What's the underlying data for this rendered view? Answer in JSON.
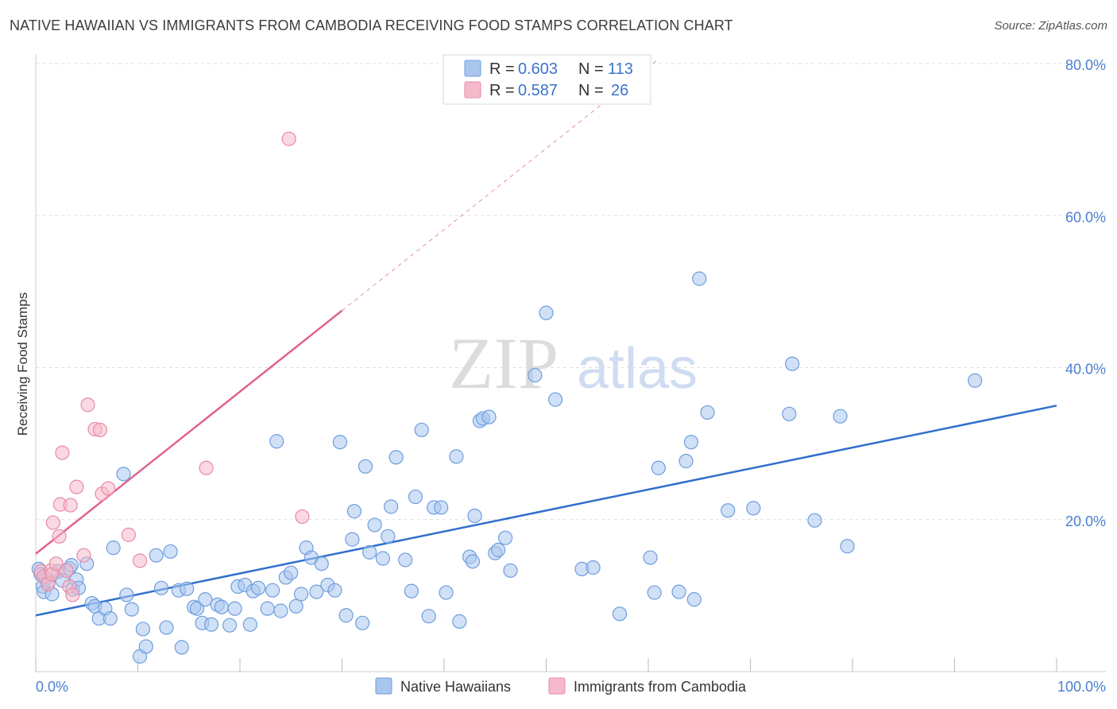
{
  "title": "NATIVE HAWAIIAN VS IMMIGRANTS FROM CAMBODIA RECEIVING FOOD STAMPS CORRELATION CHART",
  "source": "Source: ZipAtlas.com",
  "watermark": {
    "zip": "ZIP",
    "atlas": "atlas"
  },
  "colors": {
    "blue_fill": "#a9c6ee",
    "blue_stroke": "#6f9ede",
    "blue_line": "#2f6fcc",
    "pink_fill": "#f5b9cb",
    "pink_stroke": "#e88aa6",
    "pink_line": "#e0628a",
    "tick_text": "#4a7fd0",
    "grid": "#dddddd"
  },
  "legend": {
    "r_label": "R =",
    "n_label": "N =",
    "rows": [
      {
        "r": "0.603",
        "n": "113",
        "color": "blue"
      },
      {
        "r": "0.587",
        "n": "26",
        "color": "pink"
      }
    ]
  },
  "chart_data": {
    "type": "scatter",
    "title": "NATIVE HAWAIIAN VS IMMIGRANTS FROM CAMBODIA RECEIVING FOOD STAMPS CORRELATION CHART",
    "xlabel": "",
    "ylabel": "Receiving Food Stamps",
    "xlim": [
      0,
      100
    ],
    "ylim": [
      0,
      80
    ],
    "x_tick_labels": [
      "0.0%",
      "100.0%"
    ],
    "y_ticks": [
      20,
      40,
      60,
      80
    ],
    "y_tick_labels": [
      "20.0%",
      "40.0%",
      "60.0%",
      "80.0%"
    ],
    "grid": true,
    "legend_position": "bottom",
    "series": [
      {
        "name": "Native Hawaiians",
        "color": "blue",
        "trend": {
          "x0": 0,
          "y0": 7.4,
          "x1": 100,
          "y1": 35.0
        },
        "points": [
          [
            0.3,
            13.5
          ],
          [
            0.5,
            12.8
          ],
          [
            0.7,
            11.2
          ],
          [
            0.8,
            10.5
          ],
          [
            1.0,
            12.2
          ],
          [
            1.2,
            11.8
          ],
          [
            1.6,
            10.2
          ],
          [
            2.2,
            13.2
          ],
          [
            2.6,
            12.0
          ],
          [
            3.3,
            13.6
          ],
          [
            3.5,
            14.0
          ],
          [
            3.6,
            10.8
          ],
          [
            4.0,
            12.1
          ],
          [
            4.2,
            11.0
          ],
          [
            5.0,
            14.2
          ],
          [
            5.5,
            9.0
          ],
          [
            5.8,
            8.6
          ],
          [
            6.2,
            7.0
          ],
          [
            6.8,
            8.3
          ],
          [
            7.3,
            7.0
          ],
          [
            7.6,
            16.3
          ],
          [
            8.6,
            26.0
          ],
          [
            8.9,
            10.1
          ],
          [
            9.4,
            8.2
          ],
          [
            10.2,
            2.0
          ],
          [
            10.5,
            5.6
          ],
          [
            10.8,
            3.3
          ],
          [
            11.8,
            15.3
          ],
          [
            12.3,
            11.0
          ],
          [
            12.8,
            5.8
          ],
          [
            13.2,
            15.8
          ],
          [
            14.0,
            10.7
          ],
          [
            14.3,
            3.2
          ],
          [
            14.8,
            10.9
          ],
          [
            15.5,
            8.5
          ],
          [
            15.8,
            8.3
          ],
          [
            16.3,
            6.4
          ],
          [
            16.6,
            9.5
          ],
          [
            17.2,
            6.2
          ],
          [
            17.8,
            8.8
          ],
          [
            18.2,
            8.5
          ],
          [
            19.0,
            6.1
          ],
          [
            19.5,
            8.3
          ],
          [
            19.8,
            11.2
          ],
          [
            20.5,
            11.4
          ],
          [
            21.0,
            6.2
          ],
          [
            21.3,
            10.6
          ],
          [
            21.8,
            11.0
          ],
          [
            22.7,
            8.3
          ],
          [
            23.2,
            10.7
          ],
          [
            23.6,
            30.3
          ],
          [
            24.0,
            8.0
          ],
          [
            24.5,
            12.4
          ],
          [
            25.0,
            13.0
          ],
          [
            25.5,
            8.6
          ],
          [
            26.0,
            10.2
          ],
          [
            26.5,
            16.3
          ],
          [
            27.0,
            15.0
          ],
          [
            27.5,
            10.5
          ],
          [
            28.0,
            14.2
          ],
          [
            28.6,
            11.4
          ],
          [
            29.3,
            10.7
          ],
          [
            29.8,
            30.2
          ],
          [
            30.4,
            7.4
          ],
          [
            31.0,
            17.4
          ],
          [
            31.2,
            21.1
          ],
          [
            32.0,
            6.4
          ],
          [
            32.3,
            27.0
          ],
          [
            32.7,
            15.7
          ],
          [
            33.2,
            19.3
          ],
          [
            34.0,
            14.9
          ],
          [
            34.5,
            17.8
          ],
          [
            34.8,
            21.7
          ],
          [
            35.3,
            28.2
          ],
          [
            36.2,
            14.7
          ],
          [
            36.8,
            10.6
          ],
          [
            37.2,
            23.0
          ],
          [
            37.8,
            31.8
          ],
          [
            38.5,
            7.3
          ],
          [
            39.0,
            21.6
          ],
          [
            39.7,
            21.6
          ],
          [
            40.2,
            10.4
          ],
          [
            41.2,
            28.3
          ],
          [
            41.5,
            6.6
          ],
          [
            42.5,
            15.1
          ],
          [
            42.8,
            14.5
          ],
          [
            43.0,
            20.5
          ],
          [
            43.5,
            33.0
          ],
          [
            43.8,
            33.3
          ],
          [
            44.4,
            33.5
          ],
          [
            45.0,
            15.6
          ],
          [
            45.3,
            16.0
          ],
          [
            46.0,
            17.6
          ],
          [
            46.5,
            13.3
          ],
          [
            48.9,
            39.0
          ],
          [
            50.0,
            47.2
          ],
          [
            50.9,
            35.8
          ],
          [
            53.5,
            13.5
          ],
          [
            54.6,
            13.7
          ],
          [
            57.2,
            7.6
          ],
          [
            60.2,
            15.0
          ],
          [
            60.6,
            10.4
          ],
          [
            61.0,
            26.8
          ],
          [
            63.0,
            10.5
          ],
          [
            63.7,
            27.7
          ],
          [
            64.2,
            30.2
          ],
          [
            64.5,
            9.5
          ],
          [
            65.0,
            51.7
          ],
          [
            65.8,
            34.1
          ],
          [
            67.8,
            21.2
          ],
          [
            70.3,
            21.5
          ],
          [
            73.8,
            33.9
          ],
          [
            74.1,
            40.5
          ],
          [
            76.3,
            19.9
          ],
          [
            78.8,
            33.6
          ],
          [
            79.5,
            16.5
          ],
          [
            92.0,
            38.3
          ]
        ]
      },
      {
        "name": "Immigrants from Cambodia",
        "color": "pink",
        "trend": {
          "x0": 0,
          "y0": 15.5,
          "x1": 30,
          "y1": 47.5,
          "extends_dashed_to_x": 61
        },
        "points": [
          [
            0.5,
            13.2
          ],
          [
            0.8,
            12.5
          ],
          [
            1.2,
            11.5
          ],
          [
            1.5,
            13.3
          ],
          [
            1.6,
            12.8
          ],
          [
            1.7,
            19.6
          ],
          [
            2.0,
            14.2
          ],
          [
            2.3,
            17.8
          ],
          [
            2.4,
            22.0
          ],
          [
            2.6,
            28.8
          ],
          [
            3.0,
            13.3
          ],
          [
            3.3,
            11.2
          ],
          [
            3.4,
            21.9
          ],
          [
            3.6,
            10.1
          ],
          [
            4.0,
            24.3
          ],
          [
            4.7,
            15.3
          ],
          [
            5.1,
            35.1
          ],
          [
            5.8,
            31.9
          ],
          [
            6.3,
            31.8
          ],
          [
            6.5,
            23.4
          ],
          [
            7.1,
            24.1
          ],
          [
            9.1,
            18.0
          ],
          [
            10.2,
            14.6
          ],
          [
            16.7,
            26.8
          ],
          [
            24.8,
            70.1
          ],
          [
            26.1,
            20.4
          ]
        ]
      }
    ]
  }
}
